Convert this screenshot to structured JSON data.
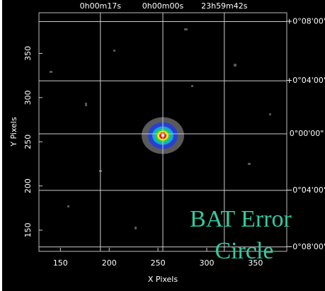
{
  "chart_data": {
    "type": "image",
    "x_label": "X Pixels",
    "y_label": "Y Pixels",
    "xlim": [
      128,
      382
    ],
    "ylim": [
      126,
      396
    ],
    "xticks": [
      150,
      200,
      250,
      300,
      350
    ],
    "yticks": [
      150,
      200,
      250,
      300,
      350
    ],
    "ra_grid": [
      {
        "value": 191,
        "label": "0h00m17s"
      },
      {
        "value": 255,
        "label": "0h00m00s"
      },
      {
        "value": 318,
        "label": "23h59m42s"
      }
    ],
    "dec_grid": [
      {
        "value": 386,
        "label": "+0°08'00\""
      },
      {
        "value": 319,
        "label": "+0°04'00\""
      },
      {
        "value": 259,
        "label": "0°00'00\""
      },
      {
        "value": 195,
        "label": "−0°04'00\""
      },
      {
        "value": 131,
        "label": "−0°08'00\""
      }
    ],
    "source": {
      "x": 255,
      "y": 257
    },
    "annotation": [
      "BAT Error",
      "Circle"
    ],
    "annotation_color": "#33c9a0"
  }
}
